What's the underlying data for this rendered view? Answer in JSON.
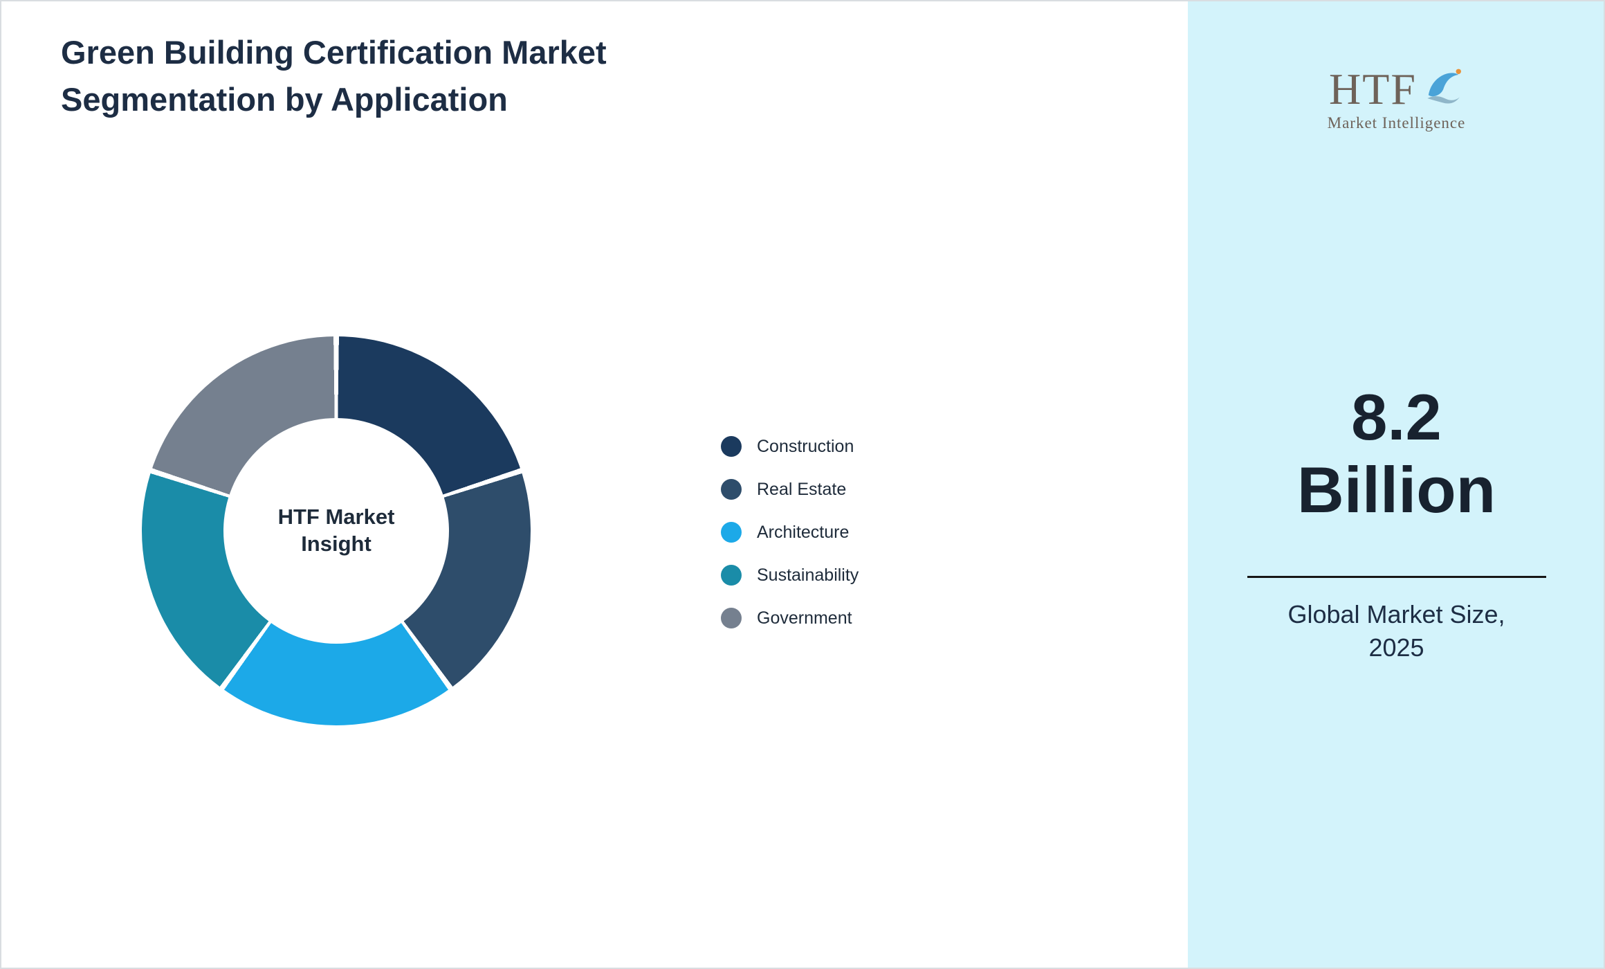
{
  "page": {
    "title": "Green Building Certification Market Segmentation by Application"
  },
  "chart_data": {
    "type": "pie",
    "subtype": "donut",
    "title": "Green Building Certification Market Segmentation by Application",
    "center_label": "HTF Market Insight",
    "categories": [
      "Construction",
      "Real Estate",
      "Architecture",
      "Sustainability",
      "Government"
    ],
    "values": [
      20,
      20,
      20,
      20,
      20
    ],
    "colors": [
      "#1b3a5e",
      "#2e4d6b",
      "#1ca9e8",
      "#1a8ca8",
      "#75808f"
    ],
    "legend_position": "right",
    "background": "#ffffff"
  },
  "sidebar": {
    "background": "#d3f3fb",
    "accent_text_color": "#18222f",
    "logo": {
      "text": "HTF",
      "subtext": "Market Intelligence",
      "icon": "dolphin-splash-icon"
    },
    "stat": {
      "value_line1": "8.2",
      "value_line2": "Billion",
      "label_line1": "Global Market Size,",
      "label_line2": "2025"
    }
  }
}
